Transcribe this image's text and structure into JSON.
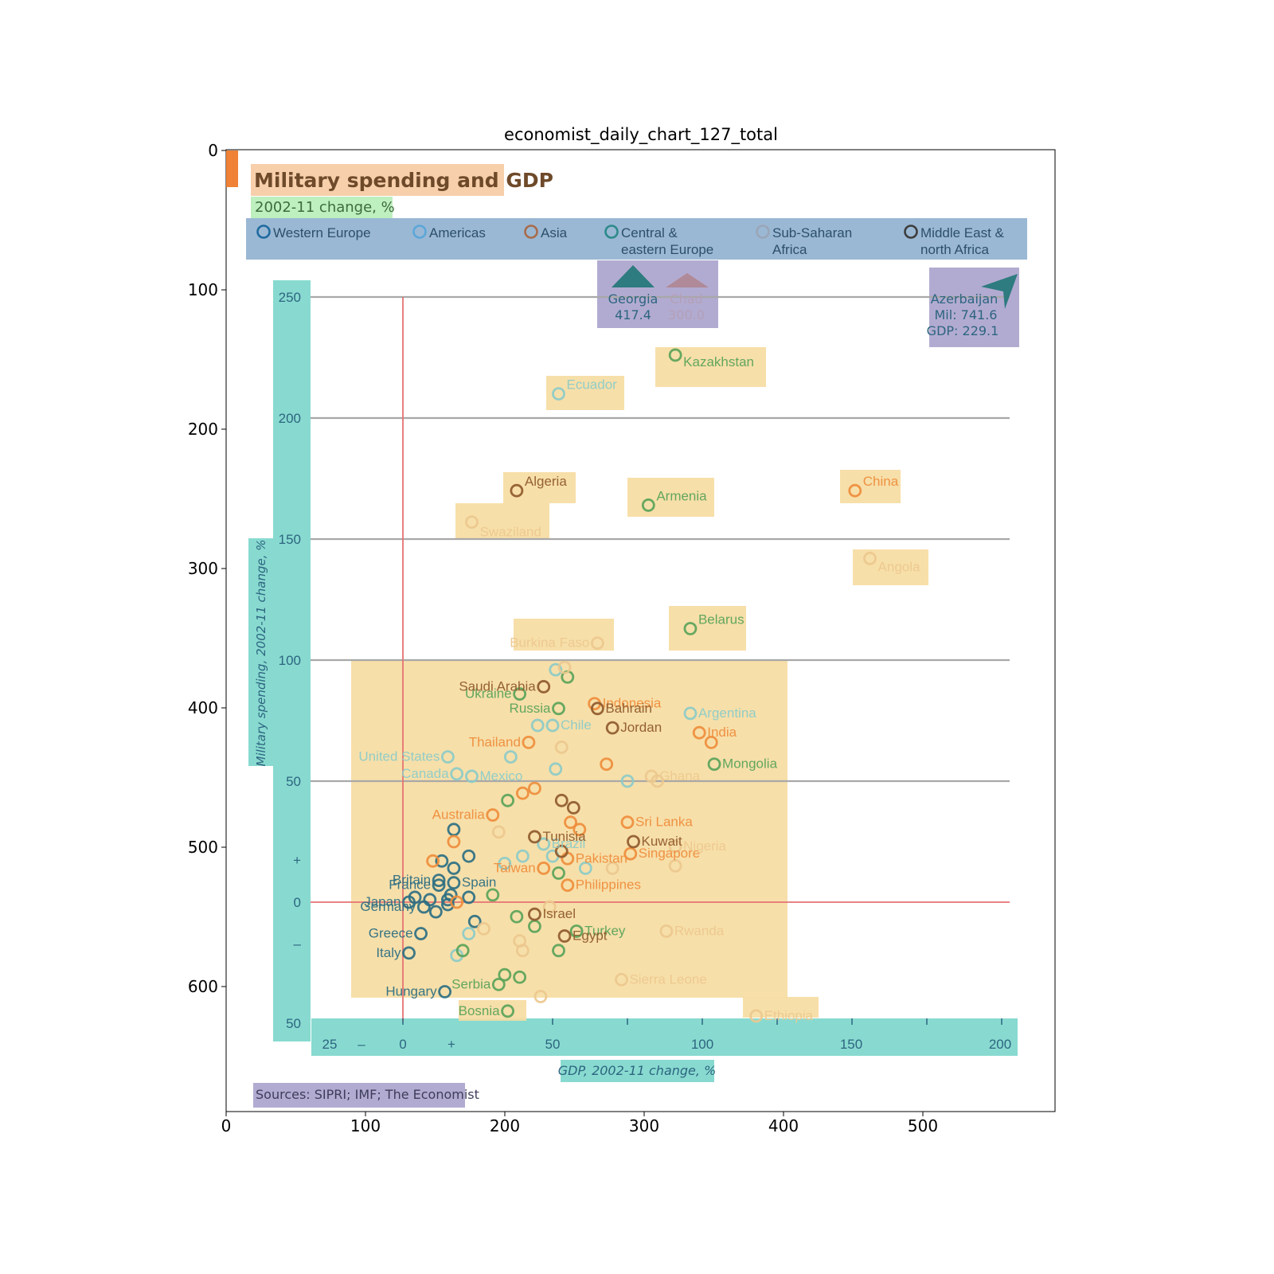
{
  "figure": {
    "title": "economist_daily_chart_127_total",
    "frame_x_ticks": [
      "0",
      "100",
      "200",
      "300",
      "400",
      "500"
    ],
    "frame_y_ticks": [
      "0",
      "100",
      "200",
      "300",
      "400",
      "500",
      "600"
    ]
  },
  "colors": {
    "Western Europe": "#2d6f83",
    "Americas": "#8ccbc8",
    "Asia": "#ee8d3c",
    "Central & eastern Europe": "#5aa35a",
    "Sub-Saharan Africa": "#ecc88e",
    "Middle East & north Africa": "#8f5a2c",
    "zero_line": "#e57373",
    "box_orange": "#f6c79c",
    "box_green": "#b3ecb3",
    "box_blue": "#8fb0cf",
    "box_purple": "#a59cc9",
    "box_teal": "#82d8cd",
    "box_yellow": "#f6dca0",
    "indicator": "#ee7b2b"
  },
  "chart": {
    "title": "Military spending and GDP",
    "subtitle": "2002-11 change, %",
    "legend": [
      {
        "label": "Western Europe",
        "label2": "",
        "ring": "#1f6aa0"
      },
      {
        "label": "Americas",
        "label2": "",
        "ring": "#5ba7d9"
      },
      {
        "label": "Asia",
        "label2": "",
        "ring": "#a86b4a"
      },
      {
        "label": "Central &",
        "label2": "eastern Europe",
        "ring": "#2d8a8a"
      },
      {
        "label": "Sub-Saharan",
        "label2": "Africa",
        "ring": "#9aa6b8"
      },
      {
        "label": "Middle East &",
        "label2": "north Africa",
        "ring": "#3d3d3d"
      }
    ],
    "y_axis_label": "Military spending, 2002-11 change, %",
    "x_axis_label": "GDP, 2002-11 change, %",
    "y_ticks": [
      "250",
      "200",
      "150",
      "100",
      "50",
      "+",
      "0",
      "–",
      "50"
    ],
    "x_ticks": [
      "25",
      "–",
      "0",
      "+",
      "50",
      "100",
      "150",
      "200"
    ],
    "source": "Sources: SIPRI; IMF; The Economist",
    "offscale": [
      {
        "name": "Georgia",
        "value": "417.4"
      },
      {
        "name": "Chad",
        "value": "300.0"
      }
    ],
    "azerbaijan": {
      "name": "Azerbaijan",
      "mil": "Mil: 741.6",
      "gdp": "GDP: 229.1"
    }
  },
  "chart_data": {
    "type": "scatter",
    "title": "Military spending and GDP",
    "subtitle": "2002-11 change, %",
    "xlabel": "GDP, 2002-11 change, %",
    "ylabel": "Military spending, 2002-11 change, %",
    "xlim": [
      -25,
      205
    ],
    "ylim": [
      -50,
      250
    ],
    "grid": "horizontal",
    "legend_position": "top",
    "series": [
      {
        "name": "Western Europe",
        "color_key": "Western Europe",
        "points": [
          {
            "label": "Britain",
            "x": 12,
            "y": 9
          },
          {
            "label": "France",
            "x": 12,
            "y": 7
          },
          {
            "label": "Spain",
            "x": 17,
            "y": 8
          },
          {
            "label": "Japan",
            "x": 2,
            "y": 0
          },
          {
            "label": "Germany",
            "x": 7,
            "y": -2
          },
          {
            "label": "Greece",
            "x": 6,
            "y": -13
          },
          {
            "label": "Italy",
            "x": 2,
            "y": -21
          },
          {
            "label": "Hungary",
            "x": 14,
            "y": -37
          },
          {
            "label": "",
            "x": 17,
            "y": 30
          },
          {
            "label": "",
            "x": 17,
            "y": 14
          },
          {
            "label": "",
            "x": 22,
            "y": 2
          },
          {
            "label": "",
            "x": 24,
            "y": -8
          },
          {
            "label": "",
            "x": 11,
            "y": -4
          },
          {
            "label": "",
            "x": 15,
            "y": 1
          },
          {
            "label": "",
            "x": 9,
            "y": 1
          },
          {
            "label": "",
            "x": 4,
            "y": 2
          },
          {
            "label": "",
            "x": 13,
            "y": 17
          },
          {
            "label": "",
            "x": 16,
            "y": 3
          },
          {
            "label": "",
            "x": 15,
            "y": -1
          },
          {
            "label": "",
            "x": 22,
            "y": 19
          }
        ]
      },
      {
        "name": "Americas",
        "color_key": "Americas",
        "points": [
          {
            "label": "Argentina",
            "x": 96,
            "y": 78
          },
          {
            "label": "Chile",
            "x": 50,
            "y": 73
          },
          {
            "label": "United States",
            "x": 15,
            "y": 60
          },
          {
            "label": "Canada",
            "x": 18,
            "y": 53
          },
          {
            "label": "Mexico",
            "x": 23,
            "y": 52
          },
          {
            "label": "Brazil",
            "x": 47,
            "y": 24
          },
          {
            "label": "Ecuador",
            "x": 52,
            "y": 210
          },
          {
            "label": "",
            "x": 51,
            "y": 96
          },
          {
            "label": "",
            "x": 45,
            "y": 73
          },
          {
            "label": "",
            "x": 36,
            "y": 60
          },
          {
            "label": "",
            "x": 51,
            "y": 55
          },
          {
            "label": "",
            "x": 34,
            "y": 16
          },
          {
            "label": "",
            "x": 40,
            "y": 19
          },
          {
            "label": "",
            "x": 50,
            "y": 19
          },
          {
            "label": "",
            "x": 61,
            "y": 14
          },
          {
            "label": "",
            "x": 22,
            "y": -13
          },
          {
            "label": "",
            "x": 18,
            "y": -22
          },
          {
            "label": "",
            "x": 75,
            "y": 50
          }
        ]
      },
      {
        "name": "Asia",
        "color_key": "Asia",
        "points": [
          {
            "label": "China",
            "x": 151,
            "y": 170
          },
          {
            "label": "India",
            "x": 99,
            "y": 70
          },
          {
            "label": "",
            "x": 103,
            "y": 66
          },
          {
            "label": "Indonesia",
            "x": 64,
            "y": 82
          },
          {
            "label": "Thailand",
            "x": 42,
            "y": 66
          },
          {
            "label": "Australia",
            "x": 30,
            "y": 36
          },
          {
            "label": "Pakistan",
            "x": 55,
            "y": 18
          },
          {
            "label": "Taiwan",
            "x": 47,
            "y": 14
          },
          {
            "label": "Philippines",
            "x": 55,
            "y": 7
          },
          {
            "label": "Sri Lanka",
            "x": 75,
            "y": 33
          },
          {
            "label": "Singapore",
            "x": 76,
            "y": 20
          },
          {
            "label": "",
            "x": 40,
            "y": 45
          },
          {
            "label": "",
            "x": 44,
            "y": 47
          },
          {
            "label": "",
            "x": 56,
            "y": 33
          },
          {
            "label": "",
            "x": 59,
            "y": 30
          },
          {
            "label": "",
            "x": 17,
            "y": 25
          },
          {
            "label": "",
            "x": 10,
            "y": 17
          },
          {
            "label": "",
            "x": 18,
            "y": 0
          },
          {
            "label": "",
            "x": 68,
            "y": 57
          }
        ]
      },
      {
        "name": "Central & eastern Europe",
        "color_key": "Central & eastern Europe",
        "points": [
          {
            "label": "Kazakhstan",
            "x": 91,
            "y": 226
          },
          {
            "label": "Armenia",
            "x": 82,
            "y": 164
          },
          {
            "label": "Belarus",
            "x": 96,
            "y": 113
          },
          {
            "label": "Mongolia",
            "x": 104,
            "y": 57
          },
          {
            "label": "Ukraine",
            "x": 39,
            "y": 86
          },
          {
            "label": "Russia",
            "x": 52,
            "y": 80
          },
          {
            "label": "Turkey",
            "x": 58,
            "y": -12
          },
          {
            "label": "Serbia",
            "x": 32,
            "y": -34
          },
          {
            "label": "Bosnia",
            "x": 35,
            "y": -45
          },
          {
            "label": "",
            "x": 55,
            "y": 93
          },
          {
            "label": "",
            "x": 30,
            "y": 3
          },
          {
            "label": "",
            "x": 38,
            "y": -6
          },
          {
            "label": "",
            "x": 44,
            "y": -10
          },
          {
            "label": "",
            "x": 52,
            "y": 12
          },
          {
            "label": "",
            "x": 52,
            "y": -20
          },
          {
            "label": "",
            "x": 20,
            "y": -20
          },
          {
            "label": "",
            "x": 34,
            "y": -30
          },
          {
            "label": "",
            "x": 39,
            "y": -31
          },
          {
            "label": "",
            "x": 35,
            "y": 42
          }
        ]
      },
      {
        "name": "Sub-Saharan Africa",
        "color_key": "Sub-Saharan Africa",
        "points": [
          {
            "label": "Angola",
            "x": 156,
            "y": 142
          },
          {
            "label": "Burkina Faso",
            "x": 65,
            "y": 107
          },
          {
            "label": "Swaziland",
            "x": 23,
            "y": 157
          },
          {
            "label": "Ghana",
            "x": 83,
            "y": 52
          },
          {
            "label": "Nigeria",
            "x": 91,
            "y": 23
          },
          {
            "label": "Rwanda",
            "x": 88,
            "y": -12
          },
          {
            "label": "Sierra Leone",
            "x": 73,
            "y": -32
          },
          {
            "label": "Ethiopia",
            "x": 118,
            "y": -47
          },
          {
            "label": "",
            "x": 54,
            "y": 97
          },
          {
            "label": "",
            "x": 53,
            "y": 64
          },
          {
            "label": "",
            "x": 85,
            "y": 50
          },
          {
            "label": "",
            "x": 91,
            "y": 15
          },
          {
            "label": "",
            "x": 70,
            "y": 14
          },
          {
            "label": "",
            "x": 32,
            "y": 29
          },
          {
            "label": "",
            "x": 49,
            "y": -2
          },
          {
            "label": "",
            "x": 27,
            "y": -11
          },
          {
            "label": "",
            "x": 39,
            "y": -16
          },
          {
            "label": "",
            "x": 40,
            "y": -20
          },
          {
            "label": "",
            "x": 46,
            "y": -39
          }
        ]
      },
      {
        "name": "Middle East & north Africa",
        "color_key": "Middle East & north Africa",
        "points": [
          {
            "label": "Algeria",
            "x": 38,
            "y": 170
          },
          {
            "label": "Saudi Arabia",
            "x": 47,
            "y": 89
          },
          {
            "label": "Bahrain",
            "x": 65,
            "y": 80
          },
          {
            "label": "Jordan",
            "x": 70,
            "y": 72
          },
          {
            "label": "Tunisia",
            "x": 44,
            "y": 27
          },
          {
            "label": "Kuwait",
            "x": 77,
            "y": 25
          },
          {
            "label": "Israel",
            "x": 44,
            "y": -5
          },
          {
            "label": "Egypt",
            "x": 54,
            "y": -14
          },
          {
            "label": "",
            "x": 57,
            "y": 39
          },
          {
            "label": "",
            "x": 53,
            "y": 42
          },
          {
            "label": "",
            "x": 53,
            "y": 21
          }
        ]
      }
    ],
    "offscale_points": [
      {
        "label": "Georgia",
        "y": 417.4
      },
      {
        "label": "Chad",
        "y": 300.0
      },
      {
        "label": "Azerbaijan",
        "x": 229.1,
        "y": 741.6
      }
    ]
  }
}
